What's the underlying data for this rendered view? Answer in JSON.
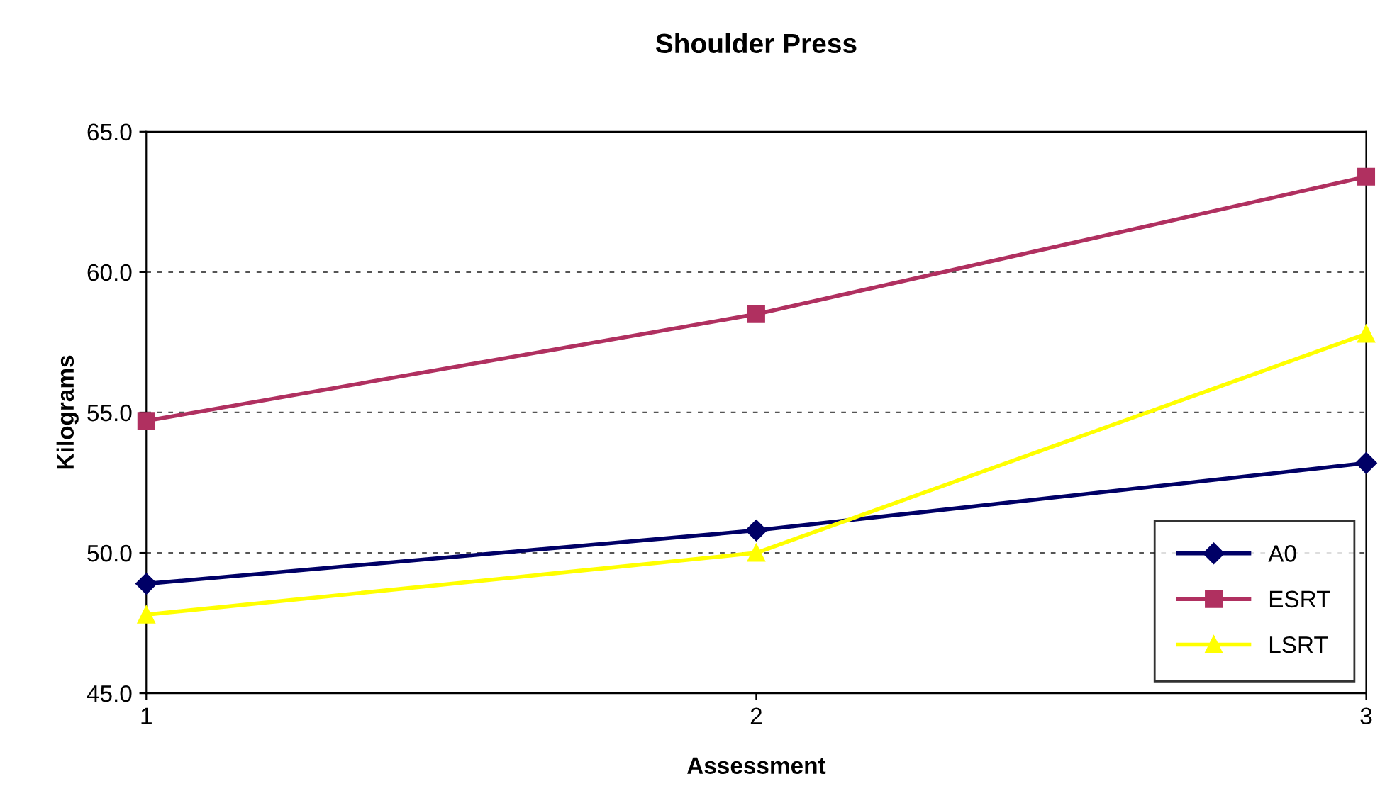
{
  "chart_data": {
    "type": "line",
    "title": "Shoulder Press",
    "xlabel": "Assessment",
    "ylabel": "Kilograms",
    "x": [
      1,
      2,
      3
    ],
    "series": [
      {
        "name": "A0",
        "color": "#000066",
        "marker": "diamond",
        "values": [
          48.9,
          50.8,
          53.2
        ]
      },
      {
        "name": "ESRT",
        "color": "#b03060",
        "marker": "square",
        "values": [
          54.7,
          58.5,
          63.4
        ]
      },
      {
        "name": "LSRT",
        "color": "#ffff00",
        "marker": "triangle",
        "values": [
          47.8,
          50.0,
          57.8
        ]
      }
    ],
    "xlim": [
      1,
      3
    ],
    "xticks": [
      1,
      2,
      3
    ],
    "ylim": [
      45,
      65
    ],
    "yticks": [
      {
        "value": 45,
        "label": "45.0"
      },
      {
        "value": 50,
        "label": "50.0"
      },
      {
        "value": 55,
        "label": "55.0"
      },
      {
        "value": 60,
        "label": "60.0"
      },
      {
        "value": 65,
        "label": "65.0"
      }
    ],
    "grid": "y",
    "legend": "bottom right",
    "line_style": "solid"
  }
}
